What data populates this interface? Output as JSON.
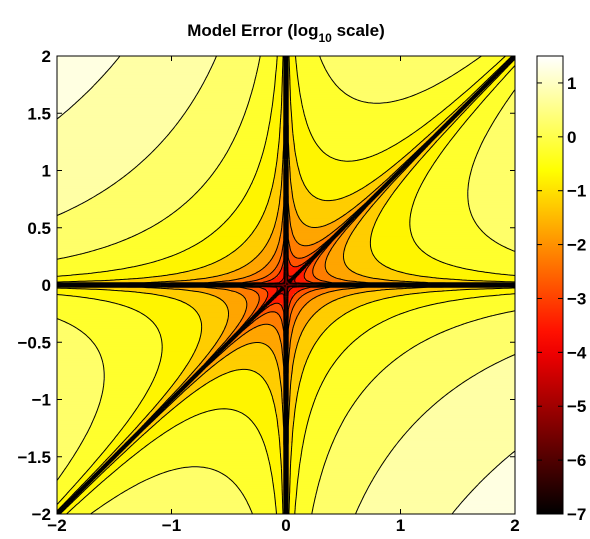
{
  "chart_data": {
    "type": "heatmap",
    "subtype": "filled-contour",
    "title": {
      "main": "Model Error (log",
      "subscript": "10",
      "suffix": " scale)"
    },
    "x_domain": [
      -2,
      2
    ],
    "y_domain": [
      -2,
      2
    ],
    "x_ticks": [
      -2,
      -1,
      0,
      1,
      2
    ],
    "x_tick_labels": [
      "−2",
      "−1",
      "0",
      "1",
      "2"
    ],
    "y_ticks": [
      2,
      1.5,
      1,
      0.5,
      0,
      -0.5,
      -1,
      -1.5,
      -2
    ],
    "y_tick_labels": [
      "2",
      "1.5",
      "1",
      "0.5",
      "0",
      "−0.5",
      "−1",
      "−1.5",
      "−2"
    ],
    "colorbar": {
      "colormap": "hot",
      "range": [
        -7,
        1.5
      ],
      "ticks": [
        1,
        0,
        -1,
        -2,
        -3,
        -4,
        -5,
        -6,
        -7
      ],
      "tick_labels": [
        "1",
        "0",
        "−1",
        "−2",
        "−3",
        "−4",
        "−5",
        "−6",
        "−7"
      ]
    },
    "contour_levels": [
      -6,
      -5,
      -4,
      -3,
      -2.5,
      -2,
      -1.5,
      -1,
      -0.5,
      0,
      0.5,
      1
    ],
    "colors": {
      "line": "#000000",
      "axes": "#000000",
      "background": "#ffffff"
    }
  }
}
